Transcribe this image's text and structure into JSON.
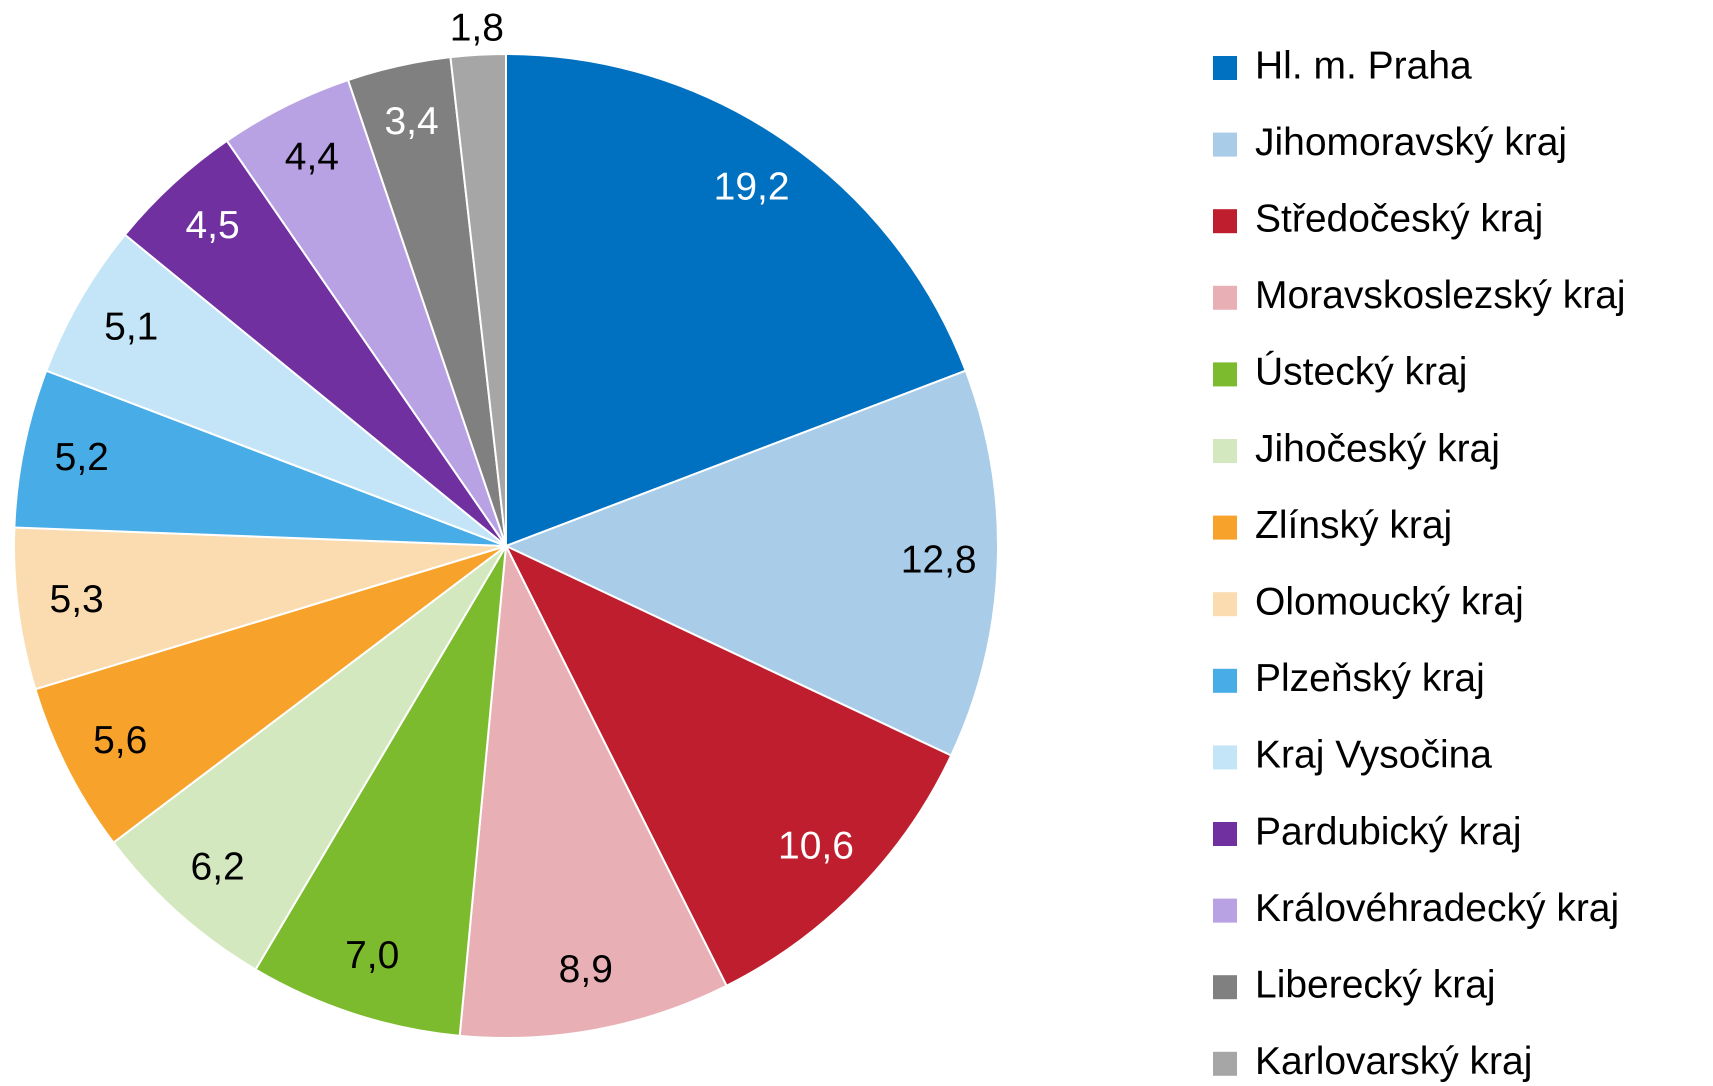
{
  "chart_data": {
    "type": "pie",
    "categories": [
      "Hl. m. Praha",
      "Jihomoravský kraj",
      "Středočeský kraj",
      "Moravskoslezský kraj",
      "Ústecký kraj",
      "Jihočeský kraj",
      "Zlínský kraj",
      "Olomoucký kraj",
      "Plzeňský kraj",
      "Kraj Vysočina",
      "Pardubický kraj",
      "Královéhradecký kraj",
      "Liberecký kraj",
      "Karlovarský kraj"
    ],
    "values": [
      19.2,
      12.8,
      10.6,
      8.9,
      7.0,
      6.2,
      5.6,
      5.3,
      5.2,
      5.1,
      4.5,
      4.4,
      3.4,
      1.8
    ],
    "value_labels": [
      "19,2",
      "12,8",
      "10,6",
      "8,9",
      "7,0",
      "6,2",
      "5,6",
      "5,3",
      "5,2",
      "5,1",
      "4,5",
      "4,4",
      "3,4",
      "1,8"
    ],
    "colors": [
      "#0070c0",
      "#a9cce8",
      "#be1e2d",
      "#e8b0b5",
      "#7dbb2e",
      "#d4e8bf",
      "#f7a22b",
      "#fbdcb0",
      "#48ace6",
      "#c4e5f7",
      "#7030a0",
      "#b8a2e3",
      "#808080",
      "#a6a6a6"
    ],
    "label_colors": [
      "#ffffff",
      "#000000",
      "#ffffff",
      "#000000",
      "#000000",
      "#000000",
      "#000000",
      "#000000",
      "#000000",
      "#000000",
      "#ffffff",
      "#000000",
      "#ffffff",
      "#000000"
    ],
    "legend": "right"
  }
}
